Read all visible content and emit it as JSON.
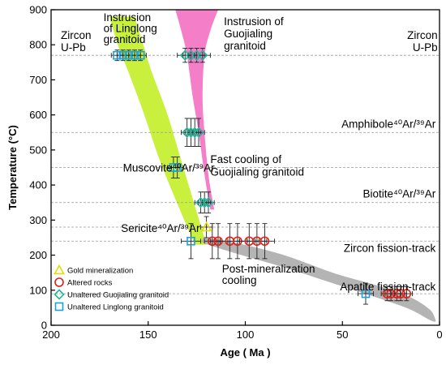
{
  "chart_data": {
    "type": "scatter",
    "xlabel": "Age ( Ma )",
    "ylabel": "Temperature (°C)",
    "xlim": [
      200,
      0
    ],
    "ylim": [
      0,
      900
    ],
    "x_reversed": true,
    "x_ticks": [
      200,
      150,
      100,
      50,
      0
    ],
    "y_ticks": [
      0,
      100,
      200,
      300,
      400,
      500,
      600,
      700,
      800,
      900
    ],
    "thermochronometers": [
      {
        "label": "Zircon U-Pb",
        "temperature": 770
      },
      {
        "label": "Amphibole⁴⁰Ar/³⁹Ar",
        "temperature": 550
      },
      {
        "label": "Muscovite⁴⁰Ar/³⁹Ar",
        "temperature": 450
      },
      {
        "label": "Biotite⁴⁰Ar/³⁹Ar",
        "temperature": 350
      },
      {
        "label": "Sericite⁴⁰Ar/³⁹Ar",
        "temperature": 280
      },
      {
        "label": "Zircon fission-track",
        "temperature": 240
      },
      {
        "label": "Apatite fission-track",
        "temperature": 90
      }
    ],
    "annotations": [
      {
        "text_lines": [
          "Instrusion",
          "of Linglong",
          "granitoid"
        ]
      },
      {
        "text_lines": [
          "Instrusion of",
          "Guojialing",
          "granitoid"
        ]
      },
      {
        "text_lines": [
          "Zircon",
          "U-Pb"
        ],
        "side": "left"
      },
      {
        "text_lines": [
          "Zircon",
          "U-Pb"
        ],
        "side": "right"
      },
      {
        "text_lines": [
          "Fast cooling of",
          "Guojialing granitoid"
        ]
      },
      {
        "text_lines": [
          "Post-mineralization",
          "cooling"
        ]
      }
    ],
    "legend": {
      "placement": "bottom-left",
      "entries": [
        {
          "label": "Gold mineralization",
          "marker": "triangle",
          "color": "#e8d800"
        },
        {
          "label": "Altered rocks",
          "marker": "circle",
          "color": "#e0201a"
        },
        {
          "label": "Unaltered Guojialing granitoid",
          "marker": "diamond",
          "color": "#1fb89a"
        },
        {
          "label": "Unaltered Linglong granitoid",
          "marker": "square",
          "color": "#1aa0e0"
        }
      ]
    },
    "series": [
      {
        "name": "Unaltered Linglong granitoid",
        "marker": "square",
        "color": "#1aa0e0",
        "points": [
          {
            "x": 166,
            "y": 770,
            "xerr": 3,
            "yerr": 15
          },
          {
            "x": 163,
            "y": 770,
            "xerr": 3,
            "yerr": 15
          },
          {
            "x": 160,
            "y": 770,
            "xerr": 3,
            "yerr": 15
          },
          {
            "x": 157,
            "y": 770,
            "xerr": 3,
            "yerr": 15
          },
          {
            "x": 154,
            "y": 770,
            "xerr": 3,
            "yerr": 15
          },
          {
            "x": 137,
            "y": 450,
            "xerr": 3,
            "yerr": 30
          },
          {
            "x": 135,
            "y": 450,
            "xerr": 3,
            "yerr": 30
          },
          {
            "x": 128,
            "y": 240,
            "xerr": 5,
            "yerr": 50
          },
          {
            "x": 38,
            "y": 90,
            "xerr": 4,
            "yerr": 30
          }
        ]
      },
      {
        "name": "Unaltered Guojialing granitoid",
        "marker": "diamond",
        "color": "#1fb89a",
        "points": [
          {
            "x": 131,
            "y": 770,
            "xerr": 4,
            "yerr": 20
          },
          {
            "x": 128,
            "y": 770,
            "xerr": 4,
            "yerr": 20
          },
          {
            "x": 125,
            "y": 770,
            "xerr": 4,
            "yerr": 20
          },
          {
            "x": 122,
            "y": 770,
            "xerr": 4,
            "yerr": 20
          },
          {
            "x": 130,
            "y": 550,
            "xerr": 3,
            "yerr": 40
          },
          {
            "x": 128,
            "y": 550,
            "xerr": 3,
            "yerr": 40
          },
          {
            "x": 126,
            "y": 550,
            "xerr": 3,
            "yerr": 40
          },
          {
            "x": 124,
            "y": 550,
            "xerr": 3,
            "yerr": 40
          },
          {
            "x": 123,
            "y": 350,
            "xerr": 3,
            "yerr": 30
          },
          {
            "x": 121,
            "y": 350,
            "xerr": 3,
            "yerr": 30
          },
          {
            "x": 119,
            "y": 350,
            "xerr": 3,
            "yerr": 30
          }
        ]
      },
      {
        "name": "Gold mineralization",
        "marker": "triangle",
        "color": "#e8d800",
        "points": [
          {
            "x": 120,
            "y": 280,
            "xerr": 3,
            "yerr": 30
          }
        ]
      },
      {
        "name": "Altered rocks",
        "marker": "circle",
        "color": "#e0201a",
        "points": [
          {
            "x": 117,
            "y": 240,
            "xerr": 4,
            "yerr": 50
          },
          {
            "x": 114,
            "y": 240,
            "xerr": 4,
            "yerr": 50
          },
          {
            "x": 108,
            "y": 240,
            "xerr": 5,
            "yerr": 50
          },
          {
            "x": 104,
            "y": 240,
            "xerr": 5,
            "yerr": 50
          },
          {
            "x": 98,
            "y": 240,
            "xerr": 5,
            "yerr": 50
          },
          {
            "x": 94,
            "y": 240,
            "xerr": 5,
            "yerr": 50
          },
          {
            "x": 90,
            "y": 240,
            "xerr": 5,
            "yerr": 50
          },
          {
            "x": 27,
            "y": 90,
            "xerr": 3,
            "yerr": 20
          },
          {
            "x": 25,
            "y": 90,
            "xerr": 3,
            "yerr": 20
          },
          {
            "x": 22,
            "y": 90,
            "xerr": 3,
            "yerr": 20
          },
          {
            "x": 20,
            "y": 90,
            "xerr": 3,
            "yerr": 20
          },
          {
            "x": 17,
            "y": 90,
            "xerr": 3,
            "yerr": 20
          }
        ]
      }
    ],
    "bands": [
      {
        "name": "Linglong granitoid cooling path",
        "color": "#c8f03c",
        "upper": [
          [
            170,
            880
          ],
          [
            165,
            790
          ],
          [
            160,
            720
          ],
          [
            152,
            600
          ],
          [
            144,
            470
          ],
          [
            136,
            360
          ],
          [
            126,
            230
          ]
        ],
        "lower": [
          [
            157,
            880
          ],
          [
            152,
            790
          ],
          [
            148,
            720
          ],
          [
            140,
            600
          ],
          [
            133,
            470
          ],
          [
            127,
            360
          ],
          [
            120,
            230
          ]
        ]
      },
      {
        "name": "Guojialing granitoid cooling path",
        "color": "#f47ec8",
        "upper": [
          [
            136,
            900
          ],
          [
            133,
            840
          ],
          [
            130,
            770
          ],
          [
            127,
            650
          ],
          [
            124,
            550
          ],
          [
            121,
            430
          ],
          [
            118,
            330
          ]
        ],
        "lower": [
          [
            114,
            900
          ],
          [
            118,
            840
          ],
          [
            121,
            770
          ],
          [
            122,
            650
          ],
          [
            121,
            550
          ],
          [
            119,
            430
          ],
          [
            116,
            330
          ]
        ]
      },
      {
        "name": "Post-mineralization cooling path",
        "color": "#b4b4b4",
        "upper": [
          [
            122,
            250
          ],
          [
            105,
            235
          ],
          [
            80,
            200
          ],
          [
            55,
            150
          ],
          [
            30,
            110
          ],
          [
            15,
            80
          ],
          [
            5,
            45
          ],
          [
            2,
            15
          ]
        ],
        "lower": [
          [
            122,
            235
          ],
          [
            105,
            205
          ],
          [
            80,
            165
          ],
          [
            55,
            120
          ],
          [
            30,
            75
          ],
          [
            15,
            45
          ],
          [
            5,
            15
          ],
          [
            2,
            10
          ]
        ]
      }
    ]
  }
}
